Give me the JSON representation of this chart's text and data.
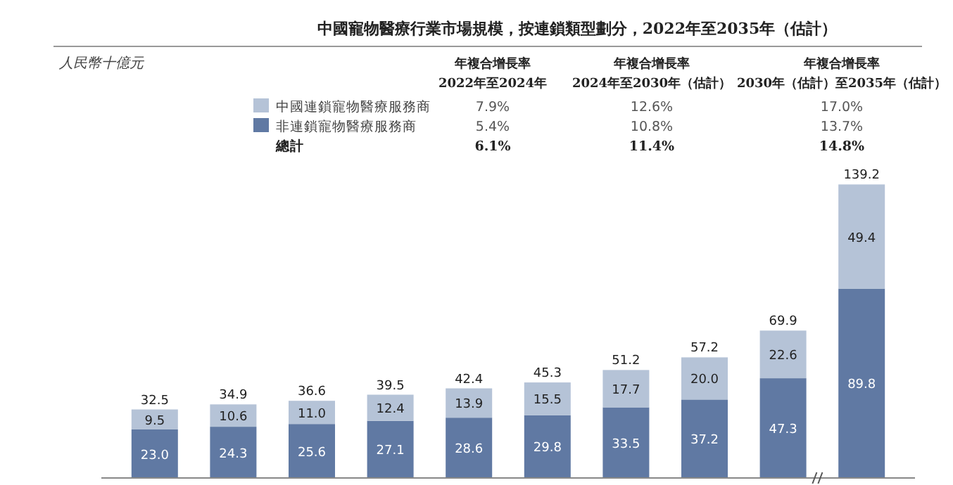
{
  "chart_data": {
    "type": "bar",
    "stacked": true,
    "title": "中國寵物醫療行業市場規模，按連鎖類型劃分，2022年至2035年（估計）",
    "categories": [
      null,
      null,
      null,
      null,
      null,
      null,
      null,
      null,
      null,
      null
    ],
    "series": [
      {
        "name": "非連鎖寵物醫療服務商",
        "color": "#6079a3",
        "values": [
          23.0,
          24.3,
          25.6,
          27.1,
          28.6,
          29.8,
          33.5,
          37.2,
          47.3,
          89.8
        ],
        "value_labels": [
          "23.0",
          "24.3",
          "25.6",
          "27.1",
          "28.6",
          "29.8",
          "33.5",
          "37.2",
          "47.3",
          "89.8"
        ]
      },
      {
        "name": "中國連鎖寵物醫療服務商",
        "color": "#b5c3d7",
        "values": [
          9.5,
          10.6,
          11.0,
          12.4,
          13.9,
          15.5,
          17.7,
          20.0,
          22.6,
          49.4
        ],
        "value_labels": [
          "9.5",
          "10.6",
          "11.0",
          "12.4",
          "13.9",
          "15.5",
          "17.7",
          "20.0",
          "22.6",
          "49.4"
        ]
      }
    ],
    "totals": [
      "32.5",
      "34.9",
      "36.6",
      "39.5",
      "42.4",
      "45.3",
      "51.2",
      "57.2",
      "69.9",
      "139.2"
    ],
    "legend": "top",
    "annotations": [
      "人民幣十億元",
      "年複合增長率",
      "2022年至2024年",
      "年複合增長率",
      "2024年至2030年（估計）",
      "年複合增長率",
      "2030年（估計）至2035年（估計）",
      "7.9%",
      "12.6%",
      "17.0%",
      "5.4%",
      "10.8%",
      "13.7%",
      "總計",
      "6.1%",
      "11.4%",
      "14.8%"
    ]
  }
}
